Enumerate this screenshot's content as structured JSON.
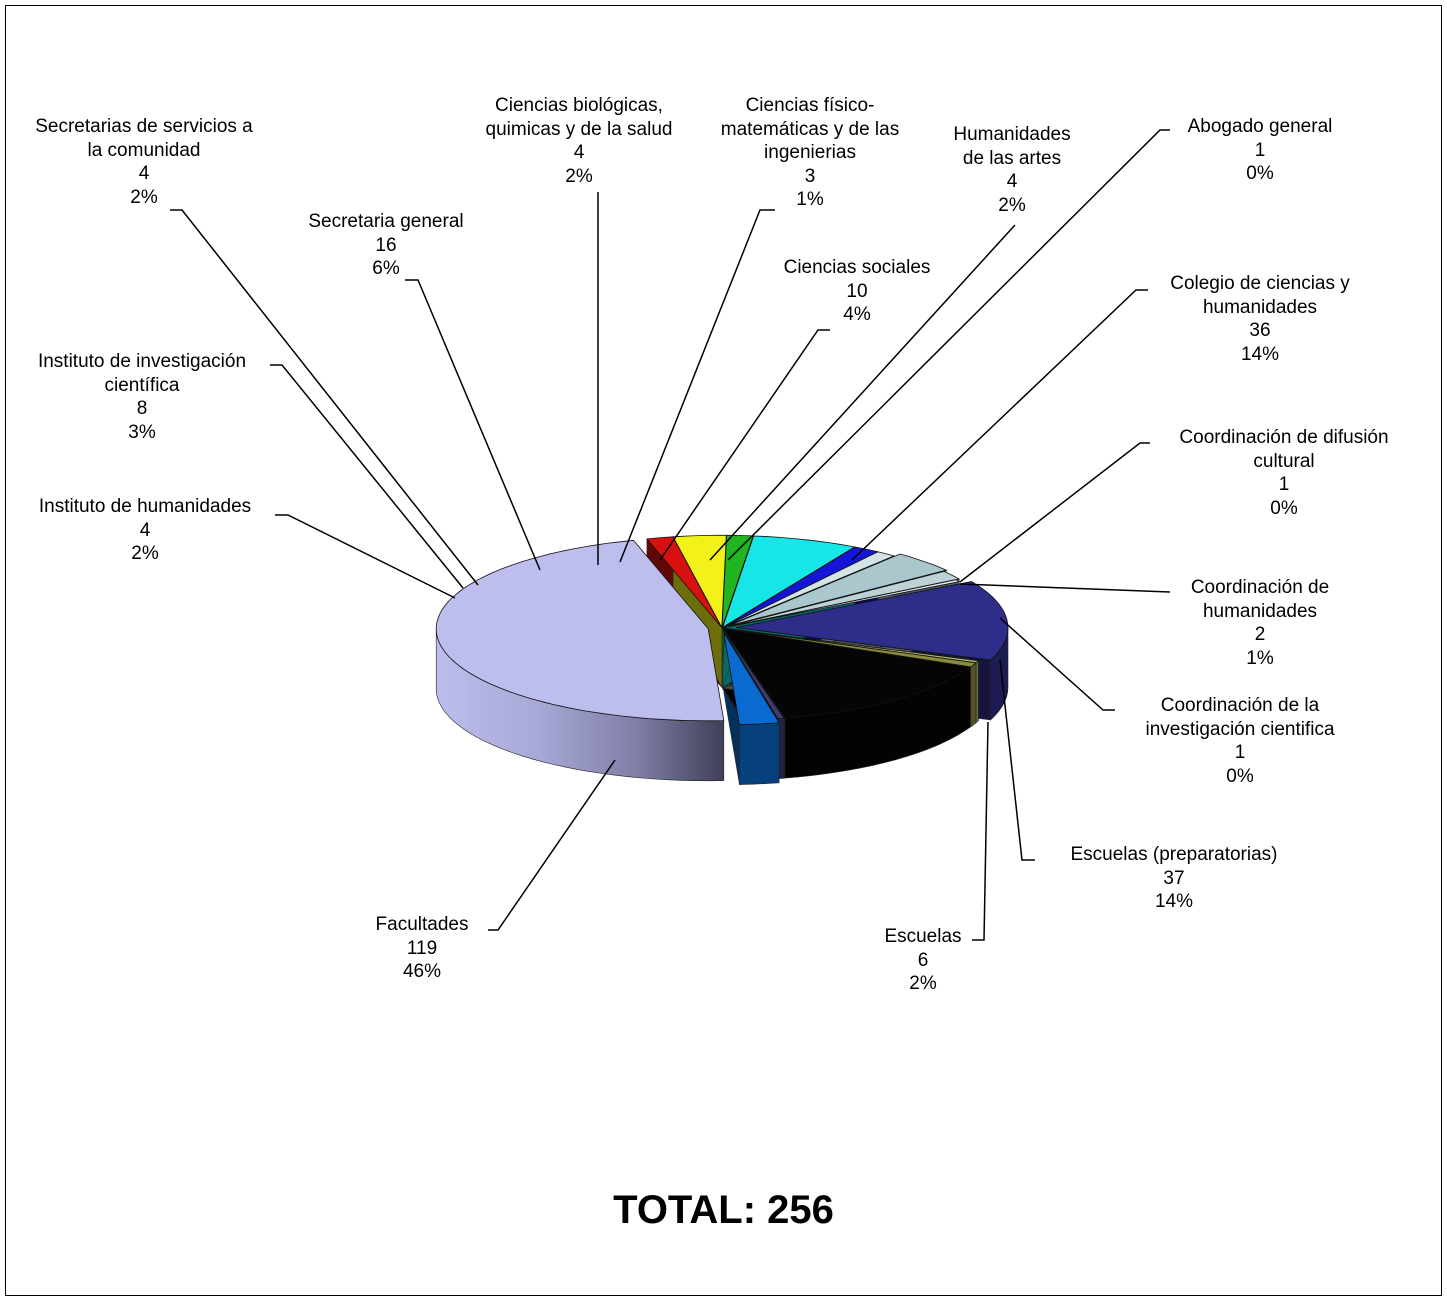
{
  "chart_data": {
    "type": "pie",
    "variant": "3d-exploded",
    "total_label": "TOTAL: 256",
    "slices": [
      {
        "name": "Colegio de ciencias y humanidades",
        "value": 36,
        "percent": "14%",
        "color": "#2E2E8A"
      },
      {
        "name": "Coordinación de difusión cultural",
        "value": 1,
        "percent": "0%",
        "color": "#B5B86A"
      },
      {
        "name": "Coordinación de humanidades",
        "value": 2,
        "percent": "1%",
        "color": "#8A8A3C"
      },
      {
        "name": "Escuelas (preparatorias)",
        "value": 37,
        "percent": "14%",
        "color": "#050505"
      },
      {
        "name": "Coordinación de la investigación cientifica",
        "value": 1,
        "percent": "0%",
        "color": "#3B3B6E"
      },
      {
        "name": "Escuelas",
        "value": 6,
        "percent": "2%",
        "color": "#0A6AD0"
      },
      {
        "name": "Facultades",
        "value": 119,
        "percent": "46%",
        "color": "#BDBDEE"
      },
      {
        "name": "Instituto de humanidades",
        "value": 4,
        "percent": "2%",
        "color": "#D81010"
      },
      {
        "name": "Instituto de investigación científica",
        "value": 8,
        "percent": "3%",
        "color": "#F2F21A"
      },
      {
        "name": "Secretarias de servicios a la comunidad",
        "value": 4,
        "percent": "2%",
        "color": "#22B522"
      },
      {
        "name": "Secretaria general",
        "value": 16,
        "percent": "6%",
        "color": "#16E6E6"
      },
      {
        "name": "Ciencias biológicas, quimicas y de la salud",
        "value": 4,
        "percent": "2%",
        "color": "#1515D8"
      },
      {
        "name": "Ciencias físico-matemáticas y de las ingenierias",
        "value": 3,
        "percent": "1%",
        "color": "#D4E4E4"
      },
      {
        "name": "Ciencias sociales",
        "value": 10,
        "percent": "4%",
        "color": "#A9C7CC"
      },
      {
        "name": "Humanidades de las artes",
        "value": 4,
        "percent": "2%",
        "color": "#BCD2D6"
      },
      {
        "name": "Abogado general",
        "value": 1,
        "percent": "0%",
        "color": "#E4E4F4"
      }
    ]
  },
  "labels": [
    {
      "lines": [
        "Secretarias de servicios a",
        "la comunidad",
        "4",
        "2%"
      ]
    },
    {
      "lines": [
        "Ciencias biológicas,",
        "quimicas y de la salud",
        "4",
        "2%"
      ]
    },
    {
      "lines": [
        "Ciencias físico-",
        "matemáticas y de las",
        "ingenierias",
        "3",
        "1%"
      ]
    },
    {
      "lines": [
        "Humanidades",
        "de las artes",
        "4",
        "2%"
      ]
    },
    {
      "lines": [
        "Abogado general",
        "1",
        "0%"
      ]
    },
    {
      "lines": [
        "Secretaria general",
        "16",
        "6%"
      ]
    },
    {
      "lines": [
        "Ciencias sociales",
        "10",
        "4%"
      ]
    },
    {
      "lines": [
        "Colegio de ciencias y",
        "humanidades",
        "36",
        "14%"
      ]
    },
    {
      "lines": [
        "Instituto de investigación",
        "científica",
        "8",
        "3%"
      ]
    },
    {
      "lines": [
        "Coordinación de difusión",
        "cultural",
        "1",
        "0%"
      ]
    },
    {
      "lines": [
        "Instituto de humanidades",
        "4",
        "2%"
      ]
    },
    {
      "lines": [
        "Coordinación de",
        "humanidades",
        "2",
        "1%"
      ]
    },
    {
      "lines": [
        "Coordinación de la",
        "investigación cientifica",
        "1",
        "0%"
      ]
    },
    {
      "lines": [
        "Escuelas (preparatorias)",
        "37",
        "14%"
      ]
    },
    {
      "lines": [
        "Facultades",
        "119",
        "46%"
      ]
    },
    {
      "lines": [
        "Escuelas",
        "6",
        "2%"
      ]
    }
  ]
}
